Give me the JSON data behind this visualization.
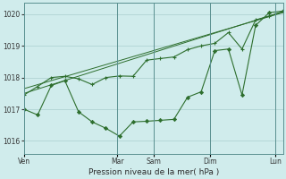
{
  "background_color": "#d0ecec",
  "grid_color": "#a0c8c8",
  "line_color": "#2d6e2d",
  "title": "Pression niveau de la mer( hPa )",
  "ylabel_ticks": [
    1016,
    1017,
    1018,
    1019,
    1020
  ],
  "xlabels": [
    "Ven",
    "Mar",
    "Sam",
    "Dim",
    "Lun"
  ],
  "xlabels_x": [
    0.0,
    0.36,
    0.5,
    0.72,
    0.97
  ],
  "vline_x": [
    0.0,
    0.36,
    0.5,
    0.72,
    0.97
  ],
  "ylim": [
    1015.6,
    1020.35
  ],
  "series1_volatile": {
    "x": [
      0,
      1,
      2,
      3,
      4,
      5,
      6,
      7,
      8,
      9,
      10,
      11,
      12,
      13,
      14,
      15,
      16,
      17,
      18,
      19
    ],
    "y": [
      1017.0,
      1016.82,
      1017.75,
      1017.9,
      1016.92,
      1016.6,
      1016.4,
      1016.15,
      1016.6,
      1016.62,
      1016.65,
      1016.68,
      1017.38,
      1017.55,
      1018.85,
      1018.9,
      1017.45,
      1019.65,
      1020.05,
      1020.1
    ]
  },
  "series2_smooth": {
    "x": [
      0,
      1,
      2,
      3,
      4,
      5,
      6,
      7,
      8,
      9,
      10,
      11,
      12,
      13,
      14,
      15,
      16,
      17,
      18,
      19
    ],
    "y": [
      1017.45,
      1017.72,
      1018.0,
      1018.04,
      1017.96,
      1017.78,
      1018.0,
      1018.05,
      1018.04,
      1018.55,
      1018.6,
      1018.65,
      1018.88,
      1019.0,
      1019.08,
      1019.42,
      1018.9,
      1019.82,
      1019.94,
      1020.08
    ]
  },
  "series3_trend1": {
    "x": [
      0,
      19
    ],
    "y": [
      1017.5,
      1020.08
    ]
  },
  "series4_trend2": {
    "x": [
      0,
      19
    ],
    "y": [
      1017.65,
      1020.05
    ]
  }
}
